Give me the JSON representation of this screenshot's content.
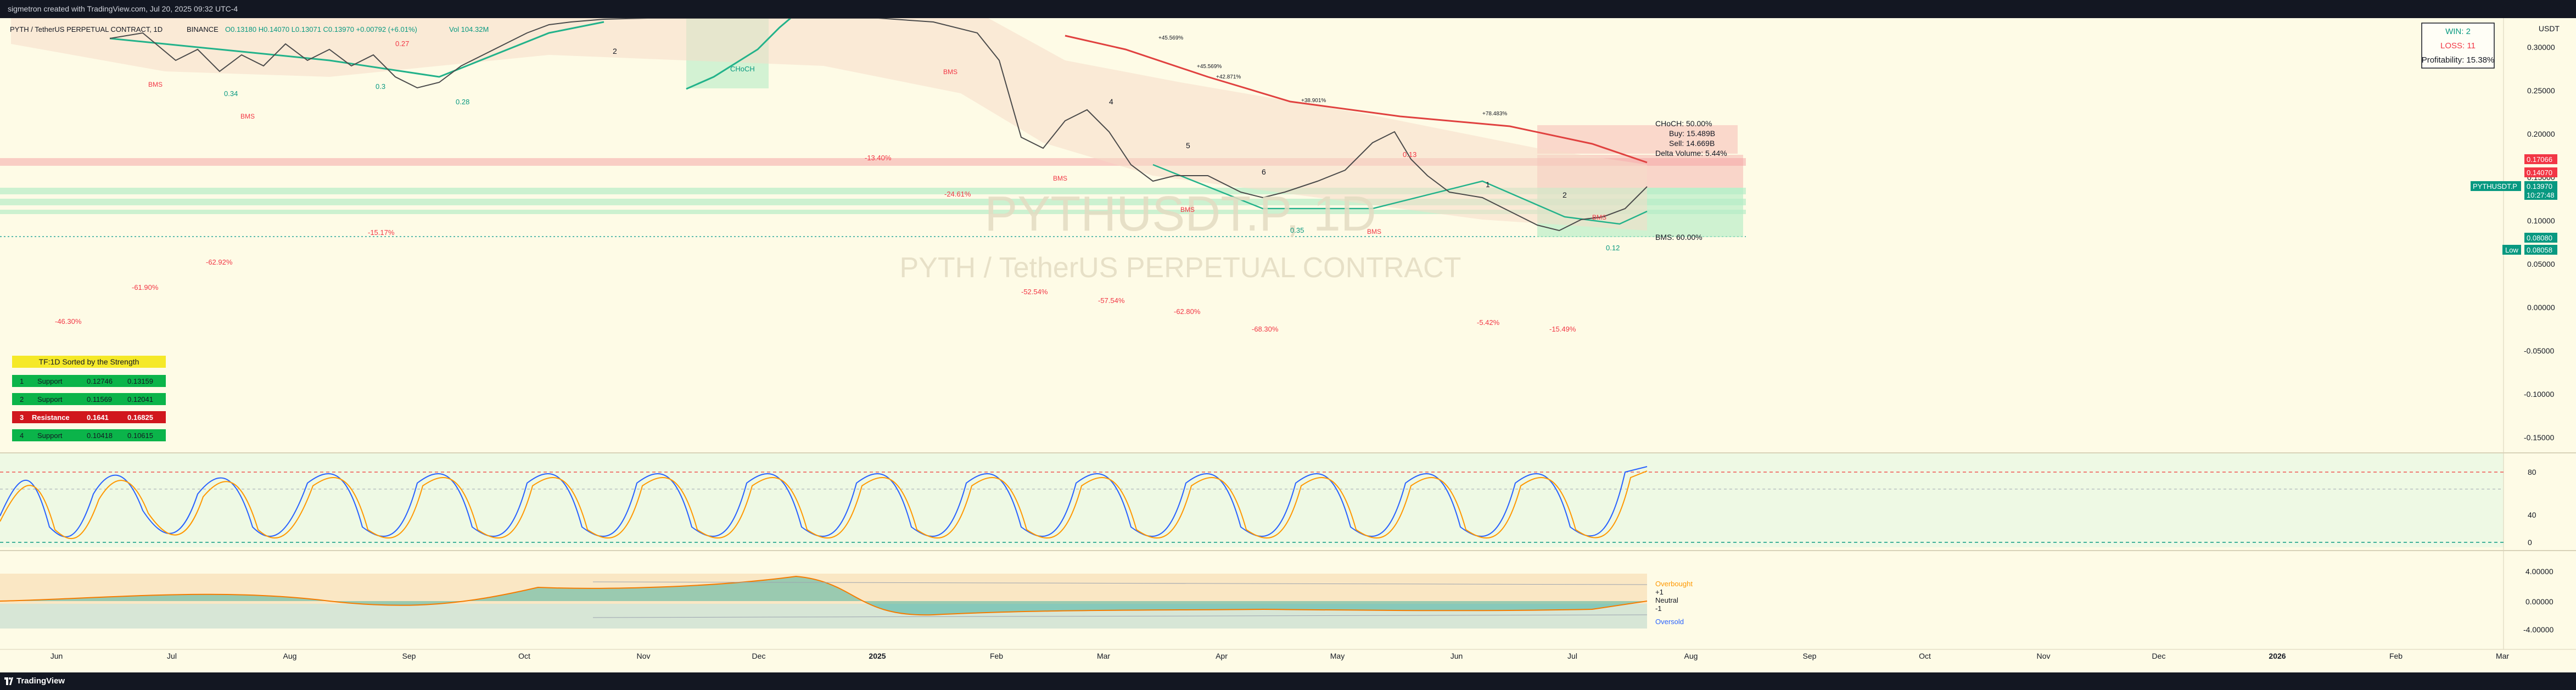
{
  "header": {
    "credit": "sigmetron created with TradingView.com, Jul 20, 2025 09:32 UTC-4"
  },
  "footer": {
    "brand": "TradingView"
  },
  "symbol_line": {
    "title": "PYTH / TetherUS PERPETUAL CONTRACT, 1D",
    "exchange": "BINANCE",
    "ohlc": "O0.13180 H0.14070 L0.13071 C0.13970 +0.00792 (+6.01%)",
    "volume": "Vol 104.32M"
  },
  "watermark": {
    "ticker": "PYTHUSDT.P, 1D",
    "name": "PYTH / TetherUS PERPETUAL CONTRACT"
  },
  "stats_box": {
    "win": "WIN: 2",
    "loss": "LOSS: 11",
    "profitability": "Profitability: 15.38%"
  },
  "currency": "USDT",
  "price_axis": [
    "0.30000",
    "0.25000",
    "0.20000",
    "0.15000",
    "0.10000",
    "0.05000",
    "0.00000",
    "-0.05000",
    "-0.10000",
    "-0.15000"
  ],
  "price_tags": {
    "p1": "0.17066",
    "p2": "0.14070",
    "sym_label": "PYTHUSDT.P",
    "last": "0.13970",
    "countdown": "10:27:48",
    "p3": "0.08080",
    "low_label": "Low",
    "low": "0.08058"
  },
  "osc1_axis": [
    "80",
    "40",
    "0"
  ],
  "osc2_axis": [
    "4.00000",
    "0.00000",
    "-4.00000"
  ],
  "time_axis": [
    "Jun",
    "Jul",
    "Aug",
    "Sep",
    "Oct",
    "Nov",
    "Dec",
    "2025",
    "Feb",
    "Mar",
    "Apr",
    "May",
    "Jun",
    "Jul",
    "Aug",
    "Sep",
    "Oct",
    "Nov",
    "Dec",
    "2026",
    "Feb",
    "Mar"
  ],
  "choch_box": {
    "l1": "CHoCH: 50.00%",
    "l2": "Buy: 15.489B",
    "l3": "Sell: 14.669B",
    "l4": "Delta Volume: 5.44%"
  },
  "bms_box": "BMS: 60.00%",
  "sr_table": {
    "title": "TF:1D Sorted by the Strength",
    "rows": [
      {
        "n": "1",
        "type": "Support",
        "low": "0.12746",
        "high": "0.13159"
      },
      {
        "n": "2",
        "type": "Support",
        "low": "0.11569",
        "high": "0.12041"
      },
      {
        "n": "3",
        "type": "Resistance",
        "low": "0.1641",
        "high": "0.16825"
      },
      {
        "n": "4",
        "type": "Support",
        "low": "0.10418",
        "high": "0.10615"
      }
    ]
  },
  "annotations": {
    "pct": [
      "-46.30%",
      "-61.90%",
      "-62.92%",
      "-15.17%",
      "-13.40%",
      "-24.61%",
      "-52.54%",
      "-57.54%",
      "-62.80%",
      "-68.30%",
      "-5.42%",
      "-15.49%"
    ],
    "pos": [
      "+45.569%",
      "+45.569%",
      "+42.871%",
      "+38.901%",
      "+78.483%"
    ],
    "bms": [
      "BMS",
      "BMS",
      "BMS",
      "BMS",
      "BMS",
      "BMS",
      "BMS"
    ],
    "choch": "CHoCH",
    "waves": [
      "2",
      "4",
      "5",
      "6",
      "1",
      "2"
    ],
    "fib": [
      "0.34",
      "0.3",
      "0.28",
      "0.27",
      "0.13",
      "0.35",
      "0.12"
    ]
  },
  "osc2_labels": {
    "overbought": "Overbought",
    "p1": "+1",
    "neutral": "Neutral",
    "m1": "-1",
    "oversold": "Oversold"
  },
  "colors": {
    "bull": "#26a69a",
    "bear": "#ef5350",
    "bg": "#fefbe6",
    "osc_k": "#2962ff",
    "osc_d": "#ff9800"
  }
}
